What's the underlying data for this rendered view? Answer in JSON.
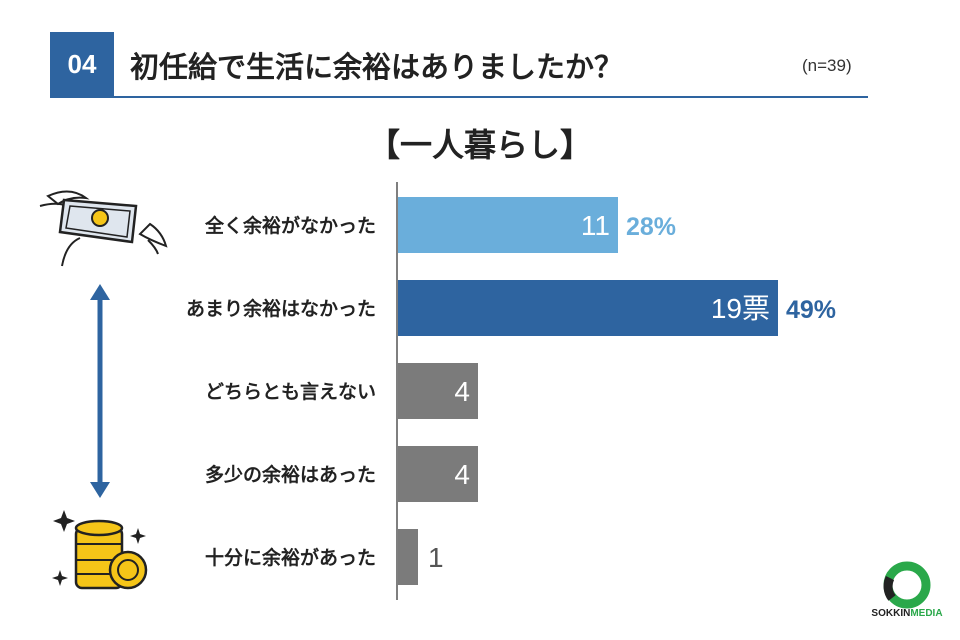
{
  "header": {
    "number": "04",
    "question": "初任給で生活に余裕はありましたか？",
    "sample": "(n=39)"
  },
  "subtitle": "【一人暮らし】",
  "logo": {
    "part1": "SOKKIN",
    "part2": "MEDIA"
  },
  "colors": {
    "accent": "#2e64a0",
    "light_blue": "#6aaedb",
    "gray": "#7b7b7b",
    "logo_green": "#2aa84a"
  },
  "icons": [
    "flying-money-icon",
    "double-arrow-icon",
    "coins-icon"
  ],
  "chart_data": {
    "type": "bar",
    "orientation": "horizontal",
    "categories": [
      "全く余裕がなかった",
      "あまり余裕はなかった",
      "どちらとも言えない",
      "多少の余裕はあった",
      "十分に余裕があった"
    ],
    "values": [
      11,
      19,
      4,
      4,
      1
    ],
    "value_labels": [
      "11",
      "19票",
      "4",
      "4",
      "1"
    ],
    "percent_labels": [
      "28%",
      "49%",
      "",
      "",
      ""
    ],
    "bar_colors": [
      "#6aaedb",
      "#2e64a0",
      "#7b7b7b",
      "#7b7b7b",
      "#7b7b7b"
    ],
    "xlim": [
      0,
      19
    ]
  }
}
